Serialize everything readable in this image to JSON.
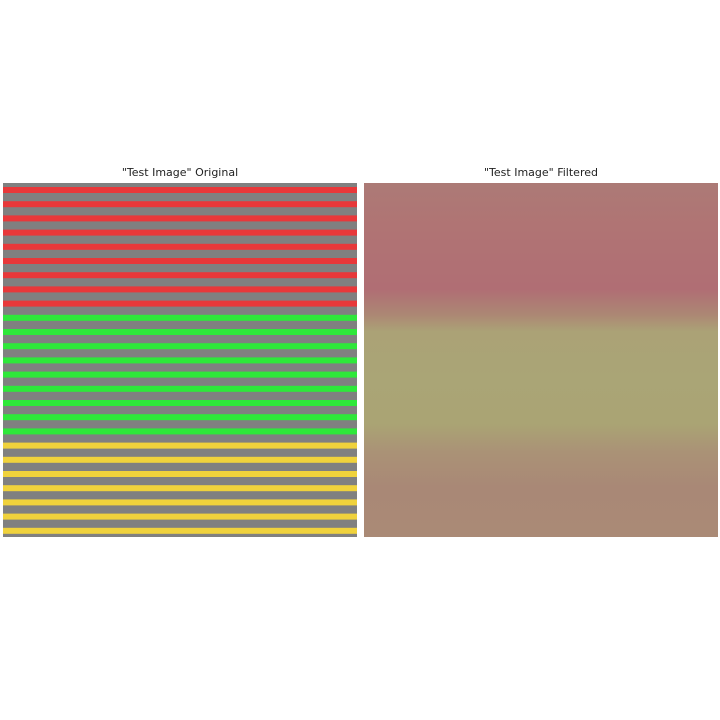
{
  "panels": [
    {
      "title": "\"Test Image\" Original"
    },
    {
      "title": "\"Test Image\" Filtered"
    }
  ],
  "colors": {
    "background_gray": "#808080",
    "stripe_red": "#e8383a",
    "stripe_green": "#2ee83a",
    "stripe_yellow": "#f0d23c",
    "filtered_red_region": "#b07074",
    "filtered_green_region": "#aaa475",
    "filtered_yellow_region": "#aa8a76"
  },
  "stripe_groups": [
    {
      "color": "red",
      "count": 9
    },
    {
      "color": "green",
      "count": 9
    },
    {
      "color": "yellow",
      "count": 7
    }
  ]
}
